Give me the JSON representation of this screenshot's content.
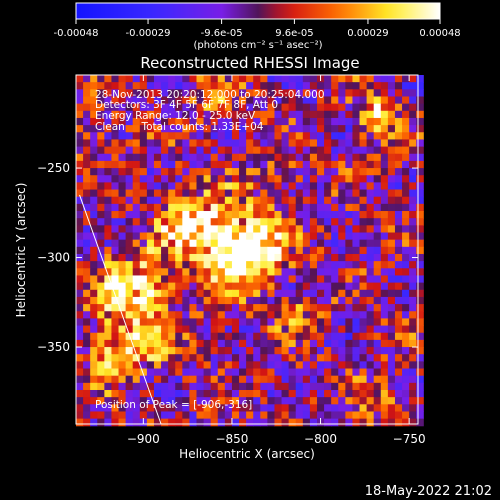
{
  "colorbar": {
    "tick_labels": [
      "-0.00048",
      "-0.00029",
      "-9.6e-05",
      "9.6e-05",
      "0.00029",
      "0.00048"
    ],
    "tick_values": [
      -0.00048,
      -0.00029,
      -9.6e-05,
      9.6e-05,
      0.00029,
      0.00048
    ],
    "range": [
      -0.00048,
      0.00048
    ],
    "units_label": "(photons cm⁻² s⁻¹ asec⁻²)",
    "colors": [
      "#1a1aff",
      "#7a1cff",
      "#d51a1a",
      "#ff7a00",
      "#ffff88",
      "#ffffff"
    ]
  },
  "chart_data": {
    "type": "heatmap",
    "title": "Reconstructed RHESSI Image",
    "xlabel": "Heliocentric X (arcsec)",
    "ylabel": "Heliocentric Y (arcsec)",
    "xlim": [
      -938,
      -745
    ],
    "ylim": [
      -393,
      -198
    ],
    "x_ticks": [
      -900,
      -850,
      -800,
      -750
    ],
    "y_ticks": [
      -250,
      -300,
      -350
    ],
    "x_tick_labels": [
      "−900",
      "−850",
      "−800",
      "−750"
    ],
    "y_tick_labels": [
      "−250",
      "−300",
      "−350"
    ],
    "peak": [
      -906,
      -316
    ],
    "limb_line": {
      "x1": -936,
      "y1": -265,
      "x2": -890,
      "y2": -393
    },
    "info_lines": [
      "28-Nov-2013 20:20:12.000 to 20:25:04.000",
      "Detectors: 3F 4F 5F 6F 7F 8F, Att 0",
      "Energy Range: 12.0 - 25.0 keV",
      "Clean     Total counts: 1.33E+04"
    ],
    "peak_label": "Position of Peak = [-906,-316]",
    "sources": [
      {
        "x": -907,
        "y": -316,
        "amp": 0.00044,
        "sigma": 14
      },
      {
        "x": -856,
        "y": -290,
        "amp": 0.00042,
        "sigma": 16
      },
      {
        "x": -840,
        "y": -296,
        "amp": 0.00036,
        "sigma": 13
      },
      {
        "x": -880,
        "y": -275,
        "amp": 0.00026,
        "sigma": 10
      },
      {
        "x": -918,
        "y": -350,
        "amp": 0.00028,
        "sigma": 11
      },
      {
        "x": -895,
        "y": -345,
        "amp": 0.00022,
        "sigma": 10
      },
      {
        "x": -770,
        "y": -220,
        "amp": 0.00034,
        "sigma": 8
      },
      {
        "x": -862,
        "y": -208,
        "amp": 0.00026,
        "sigma": 8
      },
      {
        "x": -815,
        "y": -330,
        "amp": 0.00022,
        "sigma": 8
      },
      {
        "x": -825,
        "y": -255,
        "amp": 0.00016,
        "sigma": 9
      },
      {
        "x": -770,
        "y": -380,
        "amp": 0.0002,
        "sigma": 8
      },
      {
        "x": -930,
        "y": -230,
        "amp": 0.00018,
        "sigma": 8
      }
    ]
  },
  "footer": {
    "timestamp": "18-May-2022 21:02"
  }
}
